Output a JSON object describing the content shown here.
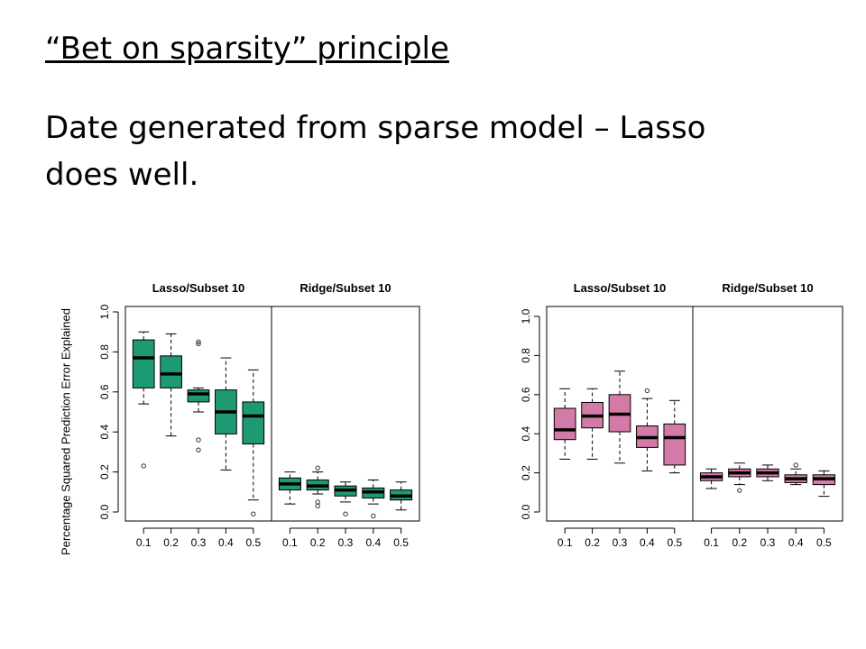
{
  "slide": {
    "title": "“Bet on sparsity” principle",
    "body": "Date generated from sparse model – Lasso does well."
  },
  "colors": {
    "left_fill": "#1d9a73",
    "right_fill": "#d47aa9"
  },
  "chart_data": [
    {
      "type": "box",
      "ylabel": "Percentage Squared Prediction Error Explained",
      "ylim": [
        0.0,
        1.0
      ],
      "yticks": [
        "0.0",
        "0.2",
        "0.4",
        "0.6",
        "0.8",
        "1.0"
      ],
      "panels": [
        {
          "title": "Lasso/Subset 10",
          "categories": [
            "0.1",
            "0.2",
            "0.3",
            "0.4",
            "0.5"
          ],
          "boxes": [
            {
              "whislo": 0.54,
              "q1": 0.62,
              "med": 0.77,
              "q3": 0.86,
              "whishi": 0.9,
              "fliers": [
                0.23
              ]
            },
            {
              "whislo": 0.38,
              "q1": 0.62,
              "med": 0.69,
              "q3": 0.78,
              "whishi": 0.89,
              "fliers": []
            },
            {
              "whislo": 0.5,
              "q1": 0.55,
              "med": 0.59,
              "q3": 0.61,
              "whishi": 0.62,
              "fliers": [
                0.84,
                0.85,
                0.36,
                0.31
              ]
            },
            {
              "whislo": 0.21,
              "q1": 0.39,
              "med": 0.5,
              "q3": 0.61,
              "whishi": 0.77,
              "fliers": []
            },
            {
              "whislo": 0.06,
              "q1": 0.34,
              "med": 0.48,
              "q3": 0.55,
              "whishi": 0.71,
              "fliers": [
                -0.01
              ]
            }
          ]
        },
        {
          "title": "Ridge/Subset 10",
          "categories": [
            "0.1",
            "0.2",
            "0.3",
            "0.4",
            "0.5"
          ],
          "boxes": [
            {
              "whislo": 0.04,
              "q1": 0.11,
              "med": 0.14,
              "q3": 0.17,
              "whishi": 0.2,
              "fliers": []
            },
            {
              "whislo": 0.09,
              "q1": 0.11,
              "med": 0.13,
              "q3": 0.16,
              "whishi": 0.2,
              "fliers": [
                0.22,
                0.05,
                0.03
              ]
            },
            {
              "whislo": 0.05,
              "q1": 0.08,
              "med": 0.11,
              "q3": 0.13,
              "whishi": 0.15,
              "fliers": [
                -0.01
              ]
            },
            {
              "whislo": 0.04,
              "q1": 0.07,
              "med": 0.1,
              "q3": 0.12,
              "whishi": 0.16,
              "fliers": [
                -0.02
              ]
            },
            {
              "whislo": 0.01,
              "q1": 0.06,
              "med": 0.08,
              "q3": 0.11,
              "whishi": 0.15,
              "fliers": []
            }
          ]
        }
      ]
    },
    {
      "type": "box",
      "ylabel": "",
      "ylim": [
        0.0,
        1.0
      ],
      "yticks": [
        "0.0",
        "0.2",
        "0.4",
        "0.6",
        "0.8",
        "1.0"
      ],
      "panels": [
        {
          "title": "Lasso/Subset 10",
          "categories": [
            "0.1",
            "0.2",
            "0.3",
            "0.4",
            "0.5"
          ],
          "boxes": [
            {
              "whislo": 0.27,
              "q1": 0.37,
              "med": 0.42,
              "q3": 0.53,
              "whishi": 0.63,
              "fliers": []
            },
            {
              "whislo": 0.27,
              "q1": 0.43,
              "med": 0.49,
              "q3": 0.56,
              "whishi": 0.63,
              "fliers": []
            },
            {
              "whislo": 0.25,
              "q1": 0.41,
              "med": 0.5,
              "q3": 0.6,
              "whishi": 0.72,
              "fliers": []
            },
            {
              "whislo": 0.21,
              "q1": 0.33,
              "med": 0.38,
              "q3": 0.44,
              "whishi": 0.58,
              "fliers": [
                0.62
              ]
            },
            {
              "whislo": 0.2,
              "q1": 0.24,
              "med": 0.38,
              "q3": 0.45,
              "whishi": 0.57,
              "fliers": []
            }
          ]
        },
        {
          "title": "Ridge/Subset 10",
          "categories": [
            "0.1",
            "0.2",
            "0.3",
            "0.4",
            "0.5"
          ],
          "boxes": [
            {
              "whislo": 0.12,
              "q1": 0.16,
              "med": 0.18,
              "q3": 0.2,
              "whishi": 0.22,
              "fliers": []
            },
            {
              "whislo": 0.14,
              "q1": 0.18,
              "med": 0.2,
              "q3": 0.22,
              "whishi": 0.25,
              "fliers": [
                0.11
              ]
            },
            {
              "whislo": 0.16,
              "q1": 0.18,
              "med": 0.2,
              "q3": 0.22,
              "whishi": 0.24,
              "fliers": []
            },
            {
              "whislo": 0.14,
              "q1": 0.15,
              "med": 0.17,
              "q3": 0.19,
              "whishi": 0.22,
              "fliers": [
                0.24
              ]
            },
            {
              "whislo": 0.08,
              "q1": 0.14,
              "med": 0.17,
              "q3": 0.19,
              "whishi": 0.21,
              "fliers": []
            }
          ]
        }
      ]
    }
  ]
}
